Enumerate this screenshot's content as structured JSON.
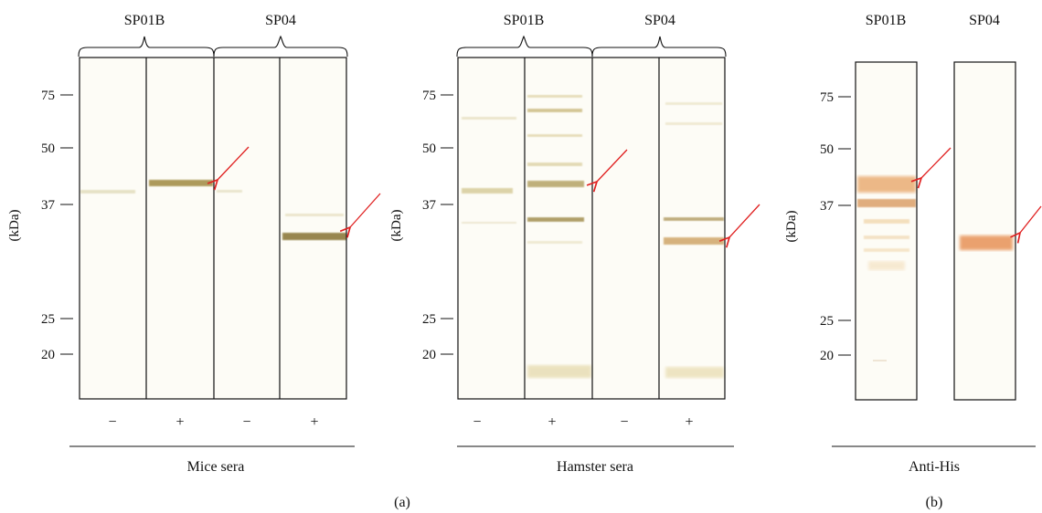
{
  "mw_unit": "(kDa)",
  "mw_markers": [
    "75",
    "50",
    "37",
    "25",
    "20"
  ],
  "panel_labels": [
    "(a)",
    "(b)"
  ],
  "colors": {
    "frame": "#111111",
    "arrow": "#e02020",
    "band_brown": "#a08a40",
    "band_orange": "#e6a060",
    "background_lane": "#fdfcf6"
  },
  "arrow_icon": "red-arrow",
  "blots": [
    {
      "group_labels": [
        "SP01B",
        "SP04"
      ],
      "lane_labels": [
        "−",
        "+",
        "−",
        "+"
      ],
      "caption": "Mice sera"
    },
    {
      "group_labels": [
        "SP01B",
        "SP04"
      ],
      "lane_labels": [
        "−",
        "+",
        "−",
        "+"
      ],
      "caption": "Hamster sera"
    },
    {
      "group_labels": [
        "SP01B",
        "SP04"
      ],
      "caption": "Anti-His"
    }
  ]
}
